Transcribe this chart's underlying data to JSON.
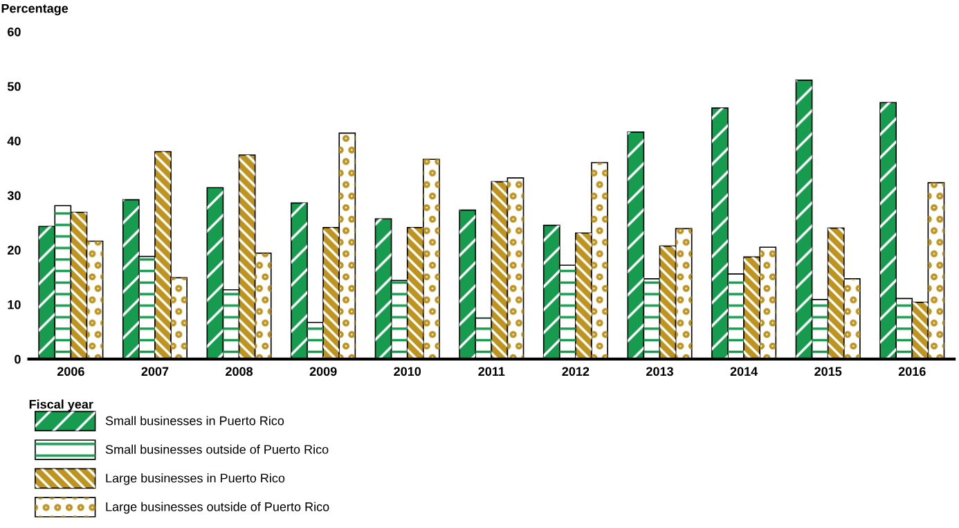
{
  "chart_data": {
    "type": "bar",
    "xlabel": "Fiscal year",
    "ylabel": "Percentage",
    "categories": [
      "2006",
      "2007",
      "2008",
      "2009",
      "2010",
      "2011",
      "2012",
      "2013",
      "2014",
      "2015",
      "2016"
    ],
    "series": [
      {
        "name": "Small businesses in Puerto Rico",
        "color": "#169b4f",
        "values": [
          24.3,
          29.2,
          31.4,
          28.6,
          25.7,
          27.3,
          24.5,
          41.6,
          46.0,
          51.1,
          47.0
        ]
      },
      {
        "name": "Small businesses outside of Puerto Rico",
        "color": "#ffffff",
        "values": [
          28.1,
          18.8,
          12.7,
          6.7,
          14.4,
          7.5,
          17.2,
          14.7,
          15.6,
          10.9,
          11.1
        ]
      },
      {
        "name": "Large businesses in Puerto Rico",
        "color": "#bd9420",
        "values": [
          26.9,
          38.0,
          37.4,
          24.1,
          24.1,
          32.5,
          23.1,
          20.7,
          18.7,
          24.0,
          10.4
        ]
      },
      {
        "name": "Large businesses outside of Puerto Rico",
        "color": "#ffffff",
        "values": [
          21.6,
          14.9,
          19.4,
          41.4,
          36.6,
          33.2,
          36.0,
          23.9,
          20.5,
          14.7,
          32.3
        ]
      }
    ],
    "ylim": [
      0,
      60
    ],
    "yticks": [
      0,
      10,
      20,
      30,
      40,
      50,
      60
    ],
    "grid": false,
    "legend": "bottom left"
  }
}
